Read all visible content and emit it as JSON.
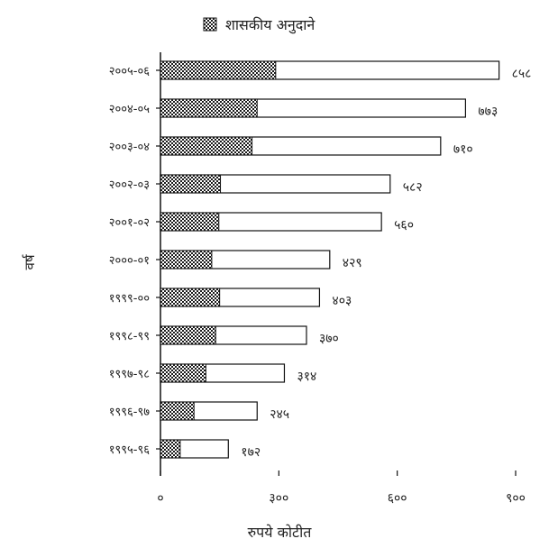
{
  "chart_data": {
    "type": "bar",
    "orientation": "horizontal",
    "stacked": "overlay",
    "legend": {
      "label": "शासकीय अनुदाने",
      "placement": "top-center"
    },
    "xlabel": "रुपये कोटीत",
    "ylabel": "वर्ष",
    "xlim": [
      0,
      900
    ],
    "xticks": [
      0,
      300,
      600,
      900
    ],
    "xtick_labels": [
      "०",
      "३००",
      "६००",
      "९००"
    ],
    "grid": false,
    "categories": [
      "१९९५-९६",
      "१९९६-९७",
      "१९९७-९८",
      "१९९८-९९",
      "१९९९-००",
      "२०००-०१",
      "२००१-०२",
      "२००२-०३",
      "२००३-०४",
      "२००४-०५",
      "२००५-०६"
    ],
    "series": [
      {
        "name": "शासकीय अनुदाने",
        "pattern": "checkered",
        "values": [
          50,
          85,
          115,
          140,
          150,
          130,
          148,
          152,
          232,
          245,
          292
        ]
      },
      {
        "pattern": "none",
        "values": [
          172,
          245,
          314,
          370,
          403,
          429,
          560,
          582,
          710,
          773,
          858
        ]
      }
    ],
    "value_labels": [
      "१७२",
      "२४५",
      "३१४",
      "३७०",
      "४०३",
      "४२९",
      "५६०",
      "५८२",
      "७१०",
      "७७३",
      "८५८"
    ]
  }
}
